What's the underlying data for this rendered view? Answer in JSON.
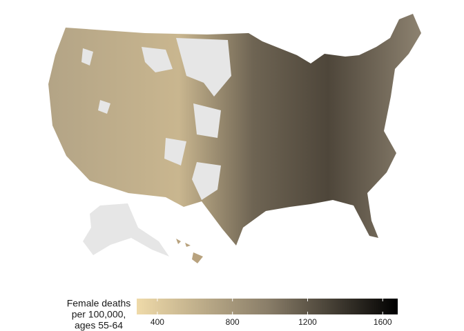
{
  "legend": {
    "title_lines": [
      "Female deaths",
      "per 100,000,",
      "ages 55-64"
    ],
    "limits": [
      290,
      1680
    ],
    "ticks": [
      400,
      800,
      1200,
      1600
    ],
    "colors": [
      "#efdaa9",
      "#8a7e69",
      "#000000"
    ]
  }
}
